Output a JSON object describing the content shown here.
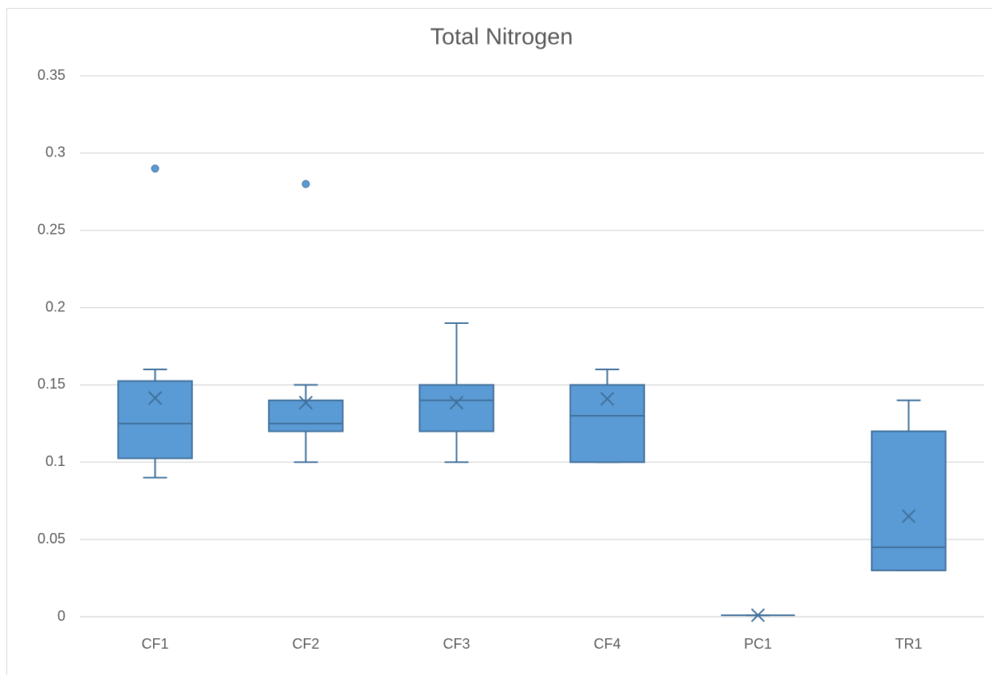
{
  "chart_data": {
    "type": "box",
    "title": "Total Nitrogen",
    "categories": [
      "CF1",
      "CF2",
      "CF3",
      "CF4",
      "PC1",
      "TR1"
    ],
    "min": [
      0.09,
      0.1,
      0.1,
      0.1,
      0.001,
      0.03
    ],
    "q1": [
      0.1025,
      0.12,
      0.12,
      0.1,
      0.001,
      0.03
    ],
    "median": [
      0.125,
      0.125,
      0.14,
      0.13,
      0.001,
      0.045
    ],
    "q3": [
      0.1525,
      0.14,
      0.15,
      0.15,
      0.001,
      0.12
    ],
    "max": [
      0.16,
      0.15,
      0.19,
      0.16,
      0.001,
      0.14
    ],
    "mean": [
      0.1415,
      0.1385,
      0.1385,
      0.141,
      0.001,
      0.065
    ],
    "outliers": [
      [
        0.29
      ],
      [
        0.28
      ],
      [],
      [],
      [],
      []
    ],
    "color": "#5b9bd5",
    "edge_color": "#41719c",
    "ylim": [
      0,
      0.35
    ],
    "yticks": [
      0,
      0.05,
      0.1,
      0.15,
      0.2,
      0.25,
      0.3,
      0.35
    ],
    "grid": true
  }
}
